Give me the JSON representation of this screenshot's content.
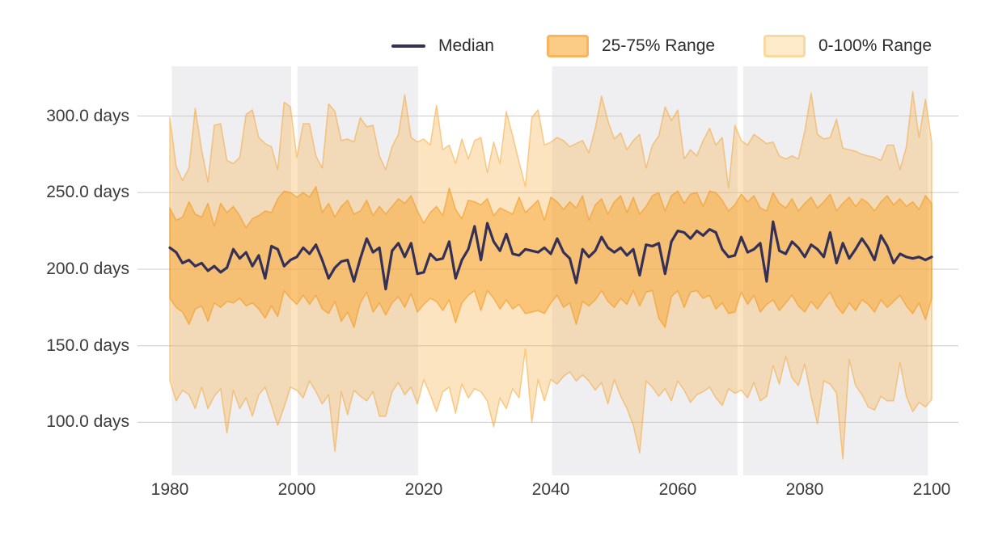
{
  "page": {
    "background": "#ffffff"
  },
  "legend": {
    "items": [
      {
        "label": "Median",
        "swatch": "line",
        "color": "#353055"
      },
      {
        "label": "25-75% Range",
        "swatch": "box",
        "fill": "#fbcc85",
        "border": "#f8b55e"
      },
      {
        "label": "0-100% Range",
        "swatch": "box",
        "fill": "#fdebc9",
        "border": "#fad9a1"
      }
    ]
  },
  "chart_data": {
    "type": "line",
    "subtype": "line_with_quantile_bands",
    "title": "",
    "xlabel": "",
    "ylabel": "days",
    "grid": true,
    "legend_position": "top",
    "x_range": [
      1980,
      2100
    ],
    "x_step_years": 1,
    "ylim": [
      65,
      335
    ],
    "x_ticks": [
      "1980",
      "2000",
      "2020",
      "2040",
      "2060",
      "2080",
      "2100"
    ],
    "x_tick_years": [
      1980,
      2000,
      2020,
      2040,
      2060,
      2080,
      2100
    ],
    "y_ticks": [
      {
        "value": 300,
        "label": "300.0 days"
      },
      {
        "value": 250,
        "label": "250.0 days"
      },
      {
        "value": 200,
        "label": "200.0 days"
      },
      {
        "value": 150,
        "label": "150.0 days"
      },
      {
        "value": 100,
        "label": "100.0 days"
      }
    ],
    "highlight_bands_years": [
      [
        1980.3,
        1999.1
      ],
      [
        2000.1,
        2019.1
      ],
      [
        2040.2,
        2069.4
      ],
      [
        2070.3,
        2099.4
      ]
    ],
    "colors": {
      "median_line": "#353055",
      "inner_band_fill": "rgba(247,166,49,0.50)",
      "inner_band_edge": "rgba(243,152,28,0.60)",
      "outer_band_fill": "rgba(247,166,49,0.30)",
      "outer_band_edge": "rgba(245,160,40,0.50)",
      "highlight_band": "#efeff1",
      "gridline": "#cccccc"
    },
    "series": [
      {
        "name": "Median",
        "type": "line",
        "color": "#353055",
        "values": [
          214,
          211,
          204,
          206,
          202,
          204,
          199,
          202,
          198,
          201,
          213,
          207,
          211,
          202,
          209,
          194,
          215,
          213,
          202,
          206,
          208,
          214,
          210,
          216,
          206,
          194,
          201,
          205,
          206,
          192,
          207,
          220,
          211,
          214,
          187,
          212,
          217,
          208,
          217,
          197,
          198,
          210,
          206,
          207,
          218,
          194,
          206,
          213,
          228,
          206,
          230,
          218,
          212,
          223,
          210,
          209,
          213,
          212,
          211,
          214,
          210,
          220,
          211,
          207,
          191,
          213,
          208,
          212,
          221,
          214,
          211,
          214,
          209,
          213,
          196,
          216,
          215,
          217,
          197,
          218,
          225,
          224,
          220,
          225,
          222,
          226,
          224,
          213,
          208,
          209,
          221,
          211,
          213,
          217,
          192,
          231,
          212,
          210,
          218,
          214,
          208,
          216,
          213,
          208,
          224,
          204,
          217,
          207,
          213,
          220,
          214,
          206,
          222,
          215,
          204,
          210,
          208,
          207,
          208,
          206,
          208
        ]
      },
      {
        "name": "25-75% Range",
        "type": "band",
        "high": [
          240,
          232,
          234,
          244,
          236,
          234,
          243,
          228,
          243,
          237,
          241,
          235,
          227,
          233,
          235,
          238,
          237,
          246,
          251,
          250,
          247,
          250,
          247,
          254,
          237,
          243,
          234,
          241,
          245,
          236,
          238,
          245,
          235,
          241,
          236,
          241,
          246,
          243,
          248,
          238,
          230,
          237,
          241,
          235,
          253,
          239,
          233,
          245,
          244,
          242,
          246,
          235,
          240,
          238,
          236,
          247,
          237,
          241,
          245,
          232,
          247,
          244,
          239,
          244,
          240,
          248,
          232,
          242,
          246,
          236,
          244,
          248,
          237,
          247,
          236,
          241,
          248,
          250,
          238,
          248,
          251,
          243,
          249,
          250,
          241,
          251,
          250,
          245,
          238,
          242,
          249,
          244,
          248,
          240,
          238,
          250,
          243,
          240,
          246,
          238,
          243,
          247,
          240,
          244,
          249,
          238,
          243,
          247,
          241,
          246,
          243,
          238,
          244,
          248,
          242,
          246,
          241,
          244,
          239,
          248,
          243
        ],
        "low": [
          181,
          175,
          172,
          164,
          174,
          176,
          166,
          178,
          175,
          179,
          178,
          181,
          176,
          178,
          174,
          168,
          176,
          169,
          186,
          181,
          177,
          183,
          177,
          183,
          174,
          171,
          179,
          166,
          172,
          162,
          178,
          185,
          172,
          178,
          170,
          178,
          182,
          175,
          184,
          172,
          177,
          181,
          179,
          173,
          180,
          165,
          178,
          183,
          186,
          173,
          186,
          181,
          174,
          180,
          174,
          177,
          171,
          172,
          173,
          171,
          178,
          183,
          175,
          178,
          164,
          179,
          176,
          180,
          186,
          179,
          175,
          181,
          177,
          186,
          176,
          185,
          186,
          168,
          162,
          182,
          186,
          175,
          185,
          186,
          181,
          183,
          174,
          178,
          171,
          172,
          185,
          177,
          183,
          172,
          177,
          180,
          173,
          178,
          183,
          176,
          172,
          179,
          174,
          180,
          185,
          176,
          171,
          178,
          173,
          180,
          177,
          172,
          180,
          175,
          179,
          183,
          176,
          171,
          178,
          167,
          181
        ]
      },
      {
        "name": "0-100% Range",
        "type": "band",
        "high": [
          299,
          267,
          258,
          266,
          305,
          278,
          257,
          294,
          295,
          271,
          269,
          273,
          301,
          304,
          286,
          282,
          280,
          265,
          309,
          306,
          273,
          295,
          295,
          274,
          266,
          308,
          303,
          284,
          285,
          283,
          299,
          293,
          294,
          274,
          265,
          280,
          288,
          314,
          286,
          283,
          285,
          281,
          307,
          278,
          281,
          269,
          285,
          272,
          284,
          286,
          263,
          283,
          269,
          303,
          287,
          270,
          254,
          299,
          304,
          281,
          283,
          286,
          284,
          280,
          282,
          284,
          276,
          292,
          313,
          297,
          285,
          289,
          278,
          284,
          288,
          266,
          281,
          287,
          306,
          297,
          304,
          272,
          278,
          274,
          284,
          292,
          281,
          286,
          253,
          294,
          284,
          281,
          288,
          285,
          282,
          283,
          274,
          272,
          274,
          272,
          290,
          315,
          288,
          285,
          286,
          298,
          279,
          278,
          277,
          275,
          274,
          273,
          271,
          281,
          281,
          265,
          280,
          316,
          286,
          311,
          283
        ],
        "low": [
          127,
          114,
          121,
          118,
          109,
          123,
          109,
          117,
          122,
          93,
          121,
          109,
          116,
          104,
          118,
          123,
          111,
          98,
          110,
          123,
          121,
          116,
          127,
          120,
          112,
          118,
          81,
          120,
          105,
          121,
          117,
          114,
          120,
          104,
          104,
          120,
          126,
          118,
          123,
          112,
          128,
          118,
          107,
          120,
          123,
          106,
          125,
          116,
          122,
          120,
          114,
          97,
          116,
          109,
          122,
          116,
          148,
          100,
          128,
          114,
          128,
          125,
          130,
          133,
          127,
          131,
          127,
          121,
          126,
          112,
          128,
          117,
          109,
          98,
          80,
          127,
          123,
          117,
          122,
          114,
          127,
          121,
          113,
          118,
          120,
          123,
          116,
          111,
          122,
          119,
          121,
          116,
          126,
          114,
          117,
          137,
          125,
          143,
          129,
          124,
          138,
          117,
          99,
          127,
          125,
          119,
          76,
          141,
          124,
          118,
          110,
          108,
          117,
          114,
          114,
          139,
          117,
          107,
          113,
          110,
          115
        ]
      }
    ]
  }
}
